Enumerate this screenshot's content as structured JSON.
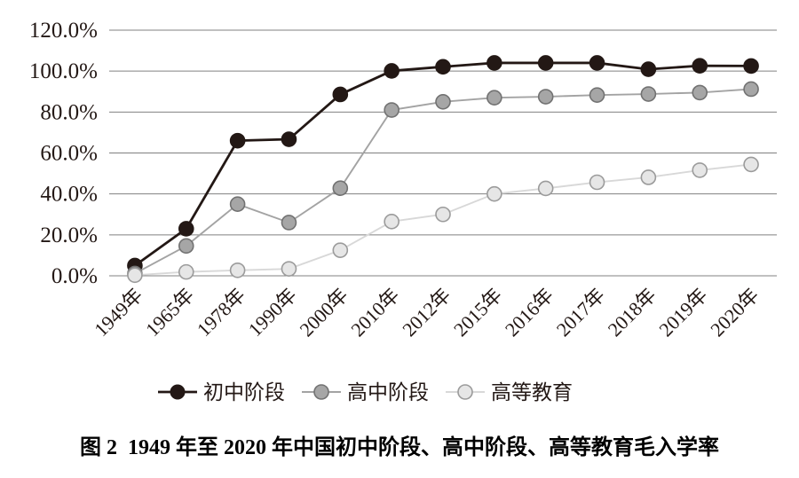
{
  "figure": {
    "caption": "图 2  1949 年至 2020 年中国初中阶段、高中阶段、高等教育毛入学率"
  },
  "chart_data": {
    "type": "line",
    "title": "1949年至2020年中国初中阶段、高中阶段、高等教育毛入学率",
    "categories": [
      "1949年",
      "1965年",
      "1978年",
      "1990年",
      "2000年",
      "2010年",
      "2012年",
      "2015年",
      "2016年",
      "2017年",
      "2018年",
      "2019年",
      "2020年"
    ],
    "y_ticks": [
      "0.0%",
      "20.0%",
      "40.0%",
      "60.0%",
      "80.0%",
      "100.0%",
      "120.0%"
    ],
    "ylim": [
      0,
      120
    ],
    "y_tick_step": 20,
    "grid": true,
    "legend_position": "bottom",
    "colors": {
      "grid": "#808080",
      "text": "#231815",
      "background": "#ffffff"
    },
    "series": [
      {
        "name": "初中阶段",
        "line_color": "#231815",
        "marker_fill": "#231815",
        "marker_stroke": "#231815",
        "values": [
          5.0,
          23.0,
          66.0,
          66.7,
          88.6,
          100.1,
          102.1,
          104.0,
          104.0,
          104.0,
          100.9,
          102.6,
          102.5
        ]
      },
      {
        "name": "高中阶段",
        "line_color": "#a3a3a3",
        "marker_fill": "#a6a6a6",
        "marker_stroke": "#727272",
        "values": [
          1.1,
          14.6,
          35.0,
          26.0,
          42.8,
          81.0,
          85.0,
          87.0,
          87.5,
          88.3,
          88.8,
          89.5,
          91.2
        ]
      },
      {
        "name": "高等教育",
        "line_color": "#d8d8d8",
        "marker_fill": "#e6e6e6",
        "marker_stroke": "#9b9b9b",
        "values": [
          0.3,
          1.9,
          2.7,
          3.4,
          12.5,
          26.5,
          30.0,
          40.0,
          42.7,
          45.7,
          48.1,
          51.6,
          54.4
        ]
      }
    ]
  }
}
